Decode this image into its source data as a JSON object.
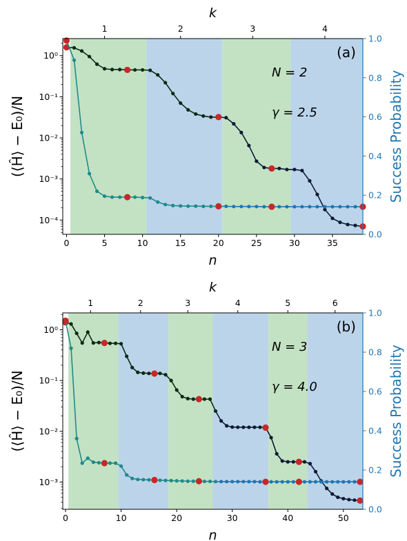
{
  "colors": {
    "band_green": "#c3e2c3",
    "band_blue": "#bcd4ea",
    "energy_line": "#0a2a14",
    "energy_line_late": "#0d1b33",
    "prob_line_early": "#1f8a8a",
    "prob_line": "#1f77b4",
    "highlight_marker": "#c62828",
    "right_axis": "#1f77b4"
  },
  "chart_data": [
    {
      "type": "line",
      "panel_label": "(a)",
      "annotations": [
        "N = 2",
        "γ = 2.5"
      ],
      "xlabel": "n",
      "top_xlabel": "k",
      "ylabel": "(⟨Ĥ⟩ − E₀)/N",
      "ylabel_right": "Success Probability",
      "xlim": [
        -0.5,
        39
      ],
      "ylim_log": [
        4.5e-05,
        2.6
      ],
      "ylim_right": [
        0,
        1
      ],
      "x_ticks": [
        0,
        5,
        10,
        15,
        20,
        25,
        30,
        35
      ],
      "y_ticks": [
        "10⁰",
        "10⁻¹",
        "10⁻²",
        "10⁻³",
        "10⁻⁴"
      ],
      "y_tick_values": [
        1,
        0.1,
        0.01,
        0.001,
        0.0001
      ],
      "y_right_ticks": [
        0.0,
        0.2,
        0.4,
        0.6,
        0.8,
        1.0
      ],
      "top_ticks": [
        1,
        2,
        3,
        4
      ],
      "top_tick_positions": [
        5,
        15,
        24.5,
        34
      ],
      "bands": [
        {
          "x0": 0.5,
          "x1": 10.5,
          "color": "green"
        },
        {
          "x0": 10.5,
          "x1": 20.5,
          "color": "blue"
        },
        {
          "x0": 20.5,
          "x1": 29.5,
          "color": "green"
        },
        {
          "x0": 29.5,
          "x1": 39,
          "color": "blue"
        }
      ],
      "series": [
        {
          "role": "energy",
          "axis": "left",
          "x": [
            0,
            1,
            2,
            3,
            4,
            5,
            6,
            7,
            8,
            9,
            10,
            11,
            12,
            13,
            14,
            15,
            16,
            17,
            18,
            19,
            20,
            21,
            22,
            23,
            24,
            25,
            26,
            27,
            28,
            29,
            30,
            31,
            32,
            33,
            34,
            35,
            36,
            37,
            38,
            39
          ],
          "values": [
            1.6,
            1.55,
            1.3,
            0.95,
            0.62,
            0.48,
            0.46,
            0.46,
            0.45,
            0.45,
            0.45,
            0.44,
            0.34,
            0.22,
            0.12,
            0.07,
            0.048,
            0.038,
            0.034,
            0.032,
            0.032,
            0.031,
            0.022,
            0.0135,
            0.0065,
            0.0027,
            0.0019,
            0.0018,
            0.0018,
            0.0017,
            0.0017,
            0.0016,
            0.0009,
            0.00042,
            0.00018,
            0.00011,
            8.8e-05,
            7.8e-05,
            7.4e-05,
            7e-05
          ],
          "highlight_x": [
            0,
            8,
            20,
            27,
            39
          ]
        },
        {
          "role": "success_probability",
          "axis": "right",
          "x": [
            0,
            1,
            2,
            3,
            4,
            5,
            6,
            7,
            8,
            9,
            10,
            11,
            12,
            13,
            14,
            15,
            16,
            17,
            18,
            19,
            20,
            21,
            22,
            23,
            24,
            25,
            26,
            27,
            28,
            29,
            30,
            31,
            32,
            33,
            34,
            35,
            36,
            37,
            38,
            39
          ],
          "values": [
            0.99,
            0.89,
            0.52,
            0.31,
            0.22,
            0.195,
            0.19,
            0.19,
            0.19,
            0.19,
            0.188,
            0.186,
            0.165,
            0.152,
            0.147,
            0.145,
            0.144,
            0.144,
            0.143,
            0.143,
            0.143,
            0.143,
            0.142,
            0.142,
            0.142,
            0.142,
            0.141,
            0.141,
            0.141,
            0.141,
            0.141,
            0.141,
            0.141,
            0.141,
            0.141,
            0.141,
            0.141,
            0.141,
            0.141,
            0.141
          ],
          "highlight_x": [
            0,
            8,
            20,
            27,
            39
          ]
        }
      ]
    },
    {
      "type": "line",
      "panel_label": "(b)",
      "annotations": [
        "N = 3",
        "γ = 4.0"
      ],
      "xlabel": "n",
      "top_xlabel": "k",
      "ylabel": "(⟨Ĥ⟩ − E₀)/N",
      "ylabel_right": "Success Probability",
      "xlim": [
        -0.5,
        53.5
      ],
      "ylim_log": [
        0.00029,
        2.15
      ],
      "ylim_right": [
        0,
        1
      ],
      "x_ticks": [
        0,
        10,
        20,
        30,
        40,
        50
      ],
      "y_ticks": [
        "10⁰",
        "10⁻¹",
        "10⁻²",
        "10⁻³"
      ],
      "y_tick_values": [
        1,
        0.1,
        0.01,
        0.001
      ],
      "y_right_ticks": [
        0.0,
        0.2,
        0.4,
        0.6,
        0.8,
        1.0
      ],
      "top_ticks": [
        1,
        2,
        3,
        4,
        5,
        6
      ],
      "top_tick_positions": [
        4.5,
        13.5,
        22,
        31,
        40,
        48.5
      ],
      "bands": [
        {
          "x0": 0.5,
          "x1": 9.5,
          "color": "green"
        },
        {
          "x0": 9.5,
          "x1": 18.5,
          "color": "blue"
        },
        {
          "x0": 18.5,
          "x1": 26.5,
          "color": "green"
        },
        {
          "x0": 26.5,
          "x1": 36.5,
          "color": "blue"
        },
        {
          "x0": 36.5,
          "x1": 43.5,
          "color": "green"
        },
        {
          "x0": 43.5,
          "x1": 53.5,
          "color": "blue"
        }
      ],
      "series": [
        {
          "role": "energy",
          "axis": "left",
          "x": [
            0,
            1,
            2,
            3,
            4,
            5,
            6,
            7,
            8,
            9,
            10,
            11,
            12,
            13,
            14,
            15,
            16,
            17,
            18,
            19,
            20,
            21,
            22,
            23,
            24,
            25,
            26,
            27,
            28,
            29,
            30,
            31,
            32,
            33,
            34,
            35,
            36,
            37,
            38,
            39,
            40,
            41,
            42,
            43,
            44,
            45,
            46,
            47,
            48,
            49,
            50,
            51,
            52,
            53
          ],
          "values": [
            1.4,
            1.3,
            0.85,
            0.55,
            0.9,
            0.55,
            0.56,
            0.55,
            0.54,
            0.54,
            0.53,
            0.3,
            0.18,
            0.145,
            0.14,
            0.138,
            0.137,
            0.138,
            0.13,
            0.1,
            0.065,
            0.048,
            0.044,
            0.043,
            0.043,
            0.043,
            0.043,
            0.025,
            0.016,
            0.0128,
            0.0121,
            0.012,
            0.012,
            0.012,
            0.012,
            0.012,
            0.0118,
            0.0075,
            0.0036,
            0.0026,
            0.0025,
            0.0025,
            0.0025,
            0.0025,
            0.0023,
            0.0016,
            0.00105,
            0.00075,
            0.00058,
            0.0005,
            0.00047,
            0.00045,
            0.00044,
            0.00043
          ],
          "highlight_x": [
            0,
            7,
            16,
            24,
            36,
            42,
            53
          ]
        },
        {
          "role": "success_probability",
          "axis": "right",
          "x": [
            0,
            1,
            2,
            3,
            4,
            5,
            6,
            7,
            8,
            9,
            10,
            11,
            12,
            13,
            14,
            15,
            16,
            17,
            18,
            19,
            20,
            21,
            22,
            23,
            24,
            25,
            26,
            27,
            28,
            29,
            30,
            31,
            32,
            33,
            34,
            35,
            36,
            37,
            38,
            39,
            40,
            41,
            42,
            43,
            44,
            45,
            46,
            47,
            48,
            49,
            50,
            51,
            52,
            53
          ],
          "values": [
            0.96,
            0.82,
            0.36,
            0.235,
            0.26,
            0.24,
            0.237,
            0.235,
            0.235,
            0.235,
            0.22,
            0.175,
            0.157,
            0.152,
            0.151,
            0.15,
            0.149,
            0.148,
            0.147,
            0.146,
            0.145,
            0.144,
            0.143,
            0.143,
            0.143,
            0.142,
            0.142,
            0.141,
            0.141,
            0.141,
            0.141,
            0.141,
            0.141,
            0.141,
            0.141,
            0.14,
            0.14,
            0.14,
            0.14,
            0.14,
            0.14,
            0.14,
            0.14,
            0.14,
            0.14,
            0.14,
            0.14,
            0.14,
            0.14,
            0.14,
            0.14,
            0.14,
            0.14,
            0.14
          ],
          "highlight_x": [
            0,
            7,
            16,
            24,
            36,
            42,
            53
          ]
        }
      ]
    }
  ]
}
